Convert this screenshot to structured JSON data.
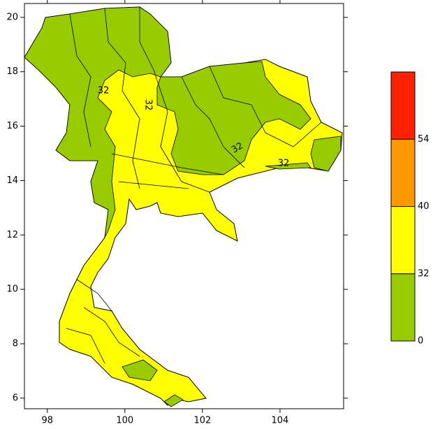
{
  "map": {
    "xlim": [
      97.41,
      105.64
    ],
    "ylim": [
      5.61,
      20.51
    ],
    "xticks": [
      98,
      100,
      102,
      104
    ],
    "yticks": [
      6,
      8,
      10,
      12,
      14,
      16,
      18,
      20
    ],
    "colorbar": {
      "levels": [
        0,
        32,
        40,
        54
      ],
      "colors": [
        "#99cc00",
        "#ffff00",
        "#ff9900",
        "#ff2200"
      ]
    },
    "contour_labels": [
      32,
      32,
      32,
      32
    ]
  }
}
